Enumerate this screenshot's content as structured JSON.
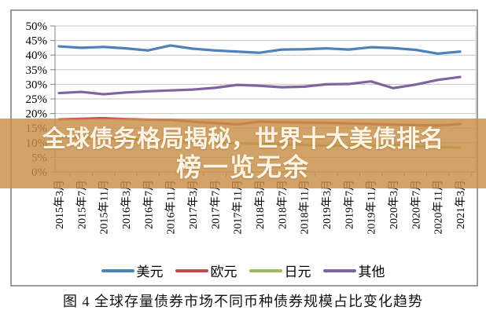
{
  "banner": {
    "line1": "全球债务格局揭秘，世界十大美债排名",
    "line2": "榜一览无余",
    "bg_color": "#C88F47",
    "bg_opacity": 0.82,
    "text_color": "#FBF4E4"
  },
  "caption": {
    "text": "图 4  全球存量债券市场不同币种债券规模占比变化趋势"
  },
  "legend": {
    "position": "bottom"
  },
  "chart_data": {
    "type": "line",
    "title": "",
    "xlabel": "",
    "ylabel": "",
    "ylim": [
      0,
      50
    ],
    "ytick_step": 5,
    "ytick_labels": [
      "0%",
      "5%",
      "10%",
      "15%",
      "20%",
      "25%",
      "30%",
      "35%",
      "40%",
      "45%",
      "50%"
    ],
    "grid": true,
    "legend_position": "bottom",
    "categories": [
      "2015年3月",
      "2015年7月",
      "2015年11月",
      "2016年3月",
      "2016年7月",
      "2016年11月",
      "2017年3月",
      "2017年7月",
      "2017年11月",
      "2018年3月",
      "2018年7月",
      "2018年11月",
      "2019年3月",
      "2019年7月",
      "2019年11月",
      "2020年3月",
      "2020年7月",
      "2020年11月",
      "2021年3月"
    ],
    "series": [
      {
        "id": "usd",
        "name": "美元",
        "color": "#4F81BD",
        "values": [
          43.0,
          42.5,
          42.8,
          42.3,
          41.6,
          43.3,
          42.2,
          41.6,
          41.2,
          40.8,
          41.9,
          42.0,
          42.3,
          41.9,
          42.7,
          42.4,
          41.8,
          40.5,
          41.2
        ]
      },
      {
        "id": "eur",
        "name": "欧元",
        "color": "#C0504D",
        "values": [
          18.0,
          18.2,
          18.4,
          18.1,
          17.9,
          17.8,
          17.2,
          16.7,
          16.3,
          17.2,
          17.0,
          16.9,
          16.8,
          16.6,
          16.4,
          16.2,
          16.0,
          15.9,
          16.4
        ]
      },
      {
        "id": "jpy",
        "name": "日元",
        "color": "#9BBB59",
        "values": [
          12.0,
          11.7,
          11.4,
          11.2,
          11.0,
          10.7,
          10.4,
          10.1,
          9.8,
          9.6,
          9.4,
          9.2,
          9.0,
          8.9,
          8.8,
          9.4,
          8.8,
          8.5,
          8.3
        ]
      },
      {
        "id": "other",
        "name": "其他",
        "color": "#8064A2",
        "values": [
          27.0,
          27.4,
          26.6,
          27.2,
          27.6,
          27.9,
          28.2,
          28.8,
          29.8,
          29.5,
          29.0,
          29.2,
          30.0,
          30.1,
          31.0,
          28.7,
          29.9,
          31.5,
          32.5
        ]
      }
    ]
  }
}
